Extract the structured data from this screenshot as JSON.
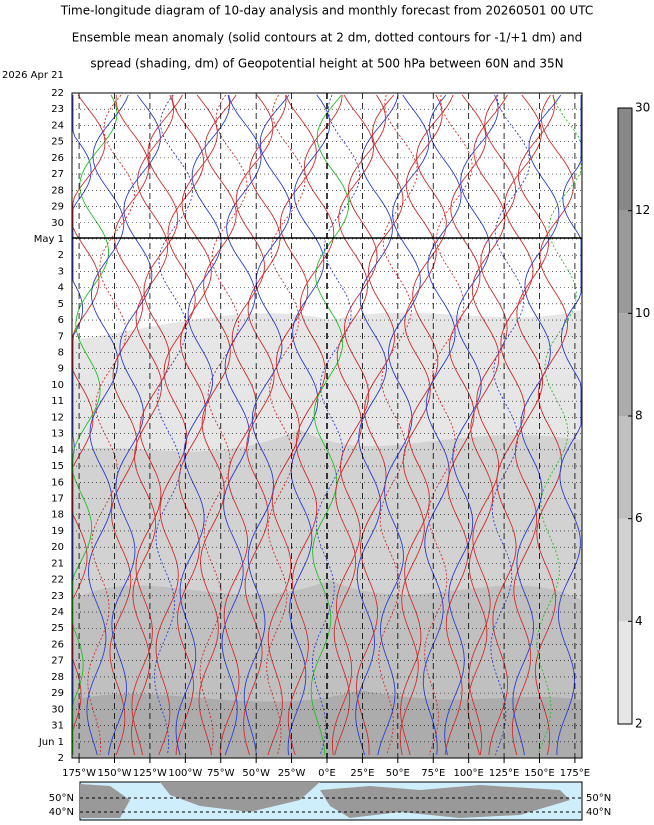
{
  "chart_data": {
    "type": "hovmoller",
    "title": "Time-longitude diagram of 10-day analysis and monthly forecast from 20260501 00 UTC",
    "subtitle": [
      "Ensemble mean anomaly (solid contours at 2 dm, dotted contours for -1/+1 dm) and",
      "spread (shading, dm) of Geopotential height at 500 hPa between 60N and 35N"
    ],
    "start_label": "2026 Apr 21",
    "y_categories": [
      "22",
      "23",
      "24",
      "25",
      "26",
      "27",
      "28",
      "29",
      "30",
      "May 1",
      "2",
      "3",
      "4",
      "5",
      "6",
      "7",
      "8",
      "9",
      "10",
      "11",
      "12",
      "13",
      "14",
      "15",
      "16",
      "17",
      "18",
      "19",
      "20",
      "21",
      "22",
      "23",
      "24",
      "25",
      "26",
      "27",
      "28",
      "29",
      "30",
      "31",
      "Jun 1",
      "2"
    ],
    "y_category_colors": [
      "#000000",
      "#000000",
      "#000000",
      "#000000",
      "#cc0000",
      "#000000",
      "#000000",
      "#000000",
      "#000000",
      "#000000",
      "#000000",
      "#cc0000",
      "#000000",
      "#000000",
      "#000000",
      "#000000",
      "#000000",
      "#000000",
      "#cc0000",
      "#000000",
      "#000000",
      "#000000",
      "#000000",
      "#000000",
      "#000000",
      "#cc0000",
      "#000000",
      "#000000",
      "#000000",
      "#000000",
      "#000000",
      "#000000",
      "#cc0000",
      "#000000",
      "#000000",
      "#000000",
      "#000000",
      "#000000",
      "#000000",
      "#cc0000",
      "#000000",
      "#000000"
    ],
    "xlim": [
      -180,
      180
    ],
    "xticks": [
      {
        "value": -175,
        "label": "175°W"
      },
      {
        "value": -150,
        "label": "150°W"
      },
      {
        "value": -125,
        "label": "125°W"
      },
      {
        "value": -100,
        "label": "100°W"
      },
      {
        "value": -75,
        "label": "75°W"
      },
      {
        "value": -50,
        "label": "50°W"
      },
      {
        "value": -25,
        "label": "25°W"
      },
      {
        "value": 0,
        "label": "0°E"
      },
      {
        "value": 25,
        "label": "25°E"
      },
      {
        "value": 50,
        "label": "50°E"
      },
      {
        "value": 75,
        "label": "75°E"
      },
      {
        "value": 100,
        "label": "100°E"
      },
      {
        "value": 125,
        "label": "125°E"
      },
      {
        "value": 150,
        "label": "150°E"
      },
      {
        "value": 175,
        "label": "175°E"
      }
    ],
    "colorbar": {
      "levels": [
        2,
        4,
        6,
        8,
        10,
        12,
        30
      ],
      "colors": [
        "#e6e6e6",
        "#d2d2d2",
        "#c0c0c0",
        "#acacac",
        "#9a9a9a",
        "#888888"
      ]
    },
    "map_lat_labels": [
      "50°N",
      "40°N"
    ]
  }
}
